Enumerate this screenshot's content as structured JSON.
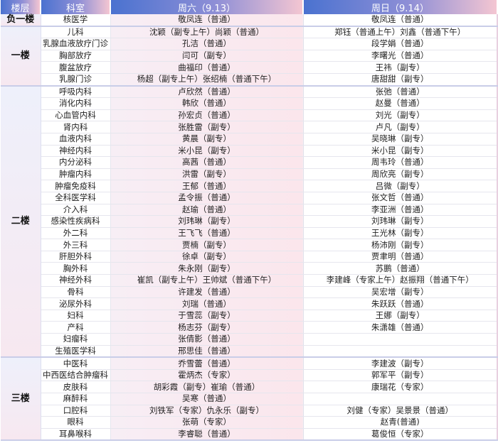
{
  "header": {
    "floor": "楼层",
    "dept": "科室",
    "sat": "周六（9.13）",
    "sun": "周日（9.14）"
  },
  "floors": [
    {
      "name": "负一楼",
      "rows": [
        [
          "核医学",
          "敬凤连（普通）",
          "敬凤连（普通）"
        ]
      ]
    },
    {
      "name": "一楼",
      "rows": [
        [
          "儿科",
          "沈颖（副专上午）尚颖（普通）",
          "郑钰（普通上午）刘鑫（普通下午）"
        ],
        [
          "乳腺血液放疗门诊",
          "孔洁（普通）",
          "段学娟（普通）"
        ],
        [
          "胸部放疗",
          "闫可（副专）",
          "李曙光（普通）"
        ],
        [
          "腹盆放疗",
          "曲福印（普通）",
          "王祎（副专）"
        ],
        [
          "乳腺门诊",
          "杨超（副专上午）张绍楠（普通下午）",
          "唐甜甜（副专）"
        ]
      ]
    },
    {
      "name": "二楼",
      "rows": [
        [
          "呼吸内科",
          "卢欣然（普通）",
          "张弛（普通）"
        ],
        [
          "消化内科",
          "韩欣（普通）",
          "赵曼（普通）"
        ],
        [
          "心血管内科",
          "孙宏贞（普通）",
          "刘光（副专）"
        ],
        [
          "肾内科",
          "张胜雷（副专）",
          "卢凡（副专）"
        ],
        [
          "血液内科",
          "黄晨（副专）",
          "吴晓琳（副专）"
        ],
        [
          "神经内科",
          "米小昆（副专）",
          "米小昆（副专）"
        ],
        [
          "内分泌科",
          "高茜（普通）",
          "周韦玲（普通）"
        ],
        [
          "肿瘤内科",
          "洪雷（副专）",
          "周欣亮（副专）"
        ],
        [
          "肿瘤免疫科",
          "王郁（普通）",
          "吕微（副专）"
        ],
        [
          "全科医学科",
          "孟令振（普通）",
          "张文哲（普通）"
        ],
        [
          "介入科",
          "赵瑜（普通）",
          "李亚洲（普通）"
        ],
        [
          "感染性疾病科",
          "刘玮琳（副专）",
          "刘玮琳（副专）"
        ],
        [
          "外二科",
          "王飞飞（普通）",
          "王光林（副专）"
        ],
        [
          "外三科",
          "贾楠（副专）",
          "杨沛刚（副专）"
        ],
        [
          "肝胆外科",
          "徐卓（副专）",
          "贾聿明（普通）"
        ],
        [
          "胸外科",
          "朱永刚（副专）",
          "苏鹏（普通）"
        ],
        [
          "神经外科",
          "崔凯（副专上午）王帅斌（普通下午）",
          "李建峰（专家上午）赵振翔（普通下午）"
        ],
        [
          "骨科",
          "许建发（普通）",
          "吴宏增（副专）"
        ],
        [
          "泌尿外科",
          "刘瑞（普通）",
          "朱跃跃（普通）"
        ],
        [
          "妇科",
          "于雪蕊（副专）",
          "王娜（副专）"
        ],
        [
          "产科",
          "杨志芬（副专）",
          "朱潇雄（普通）"
        ],
        [
          "妇瘤科",
          "张倩影（普通）",
          ""
        ],
        [
          "生殖医学科",
          "邢思佳（普通）",
          ""
        ]
      ]
    },
    {
      "name": "三楼",
      "rows": [
        [
          "中医科",
          "乔雪蕾（普通）",
          "李建波（副专）"
        ],
        [
          "中西医结合肿瘤科",
          "霍炳杰（专家）",
          "郭军平（副专）"
        ],
        [
          "皮肤科",
          "胡彩霞（副专）崔瑜（普通）",
          "康瑞花（专家）"
        ],
        [
          "麻醉科",
          "吴寒（普通）",
          ""
        ],
        [
          "口腔科",
          "刘铁军（专家）仇永乐（副专）",
          "刘健（专家）吴景景（普通）"
        ],
        [
          "眼科",
          "张萌（专家）",
          "赵青(普通)"
        ],
        [
          "耳鼻喉科",
          "李睿聪（普通）",
          "葛俊恒（专家）"
        ]
      ]
    }
  ]
}
